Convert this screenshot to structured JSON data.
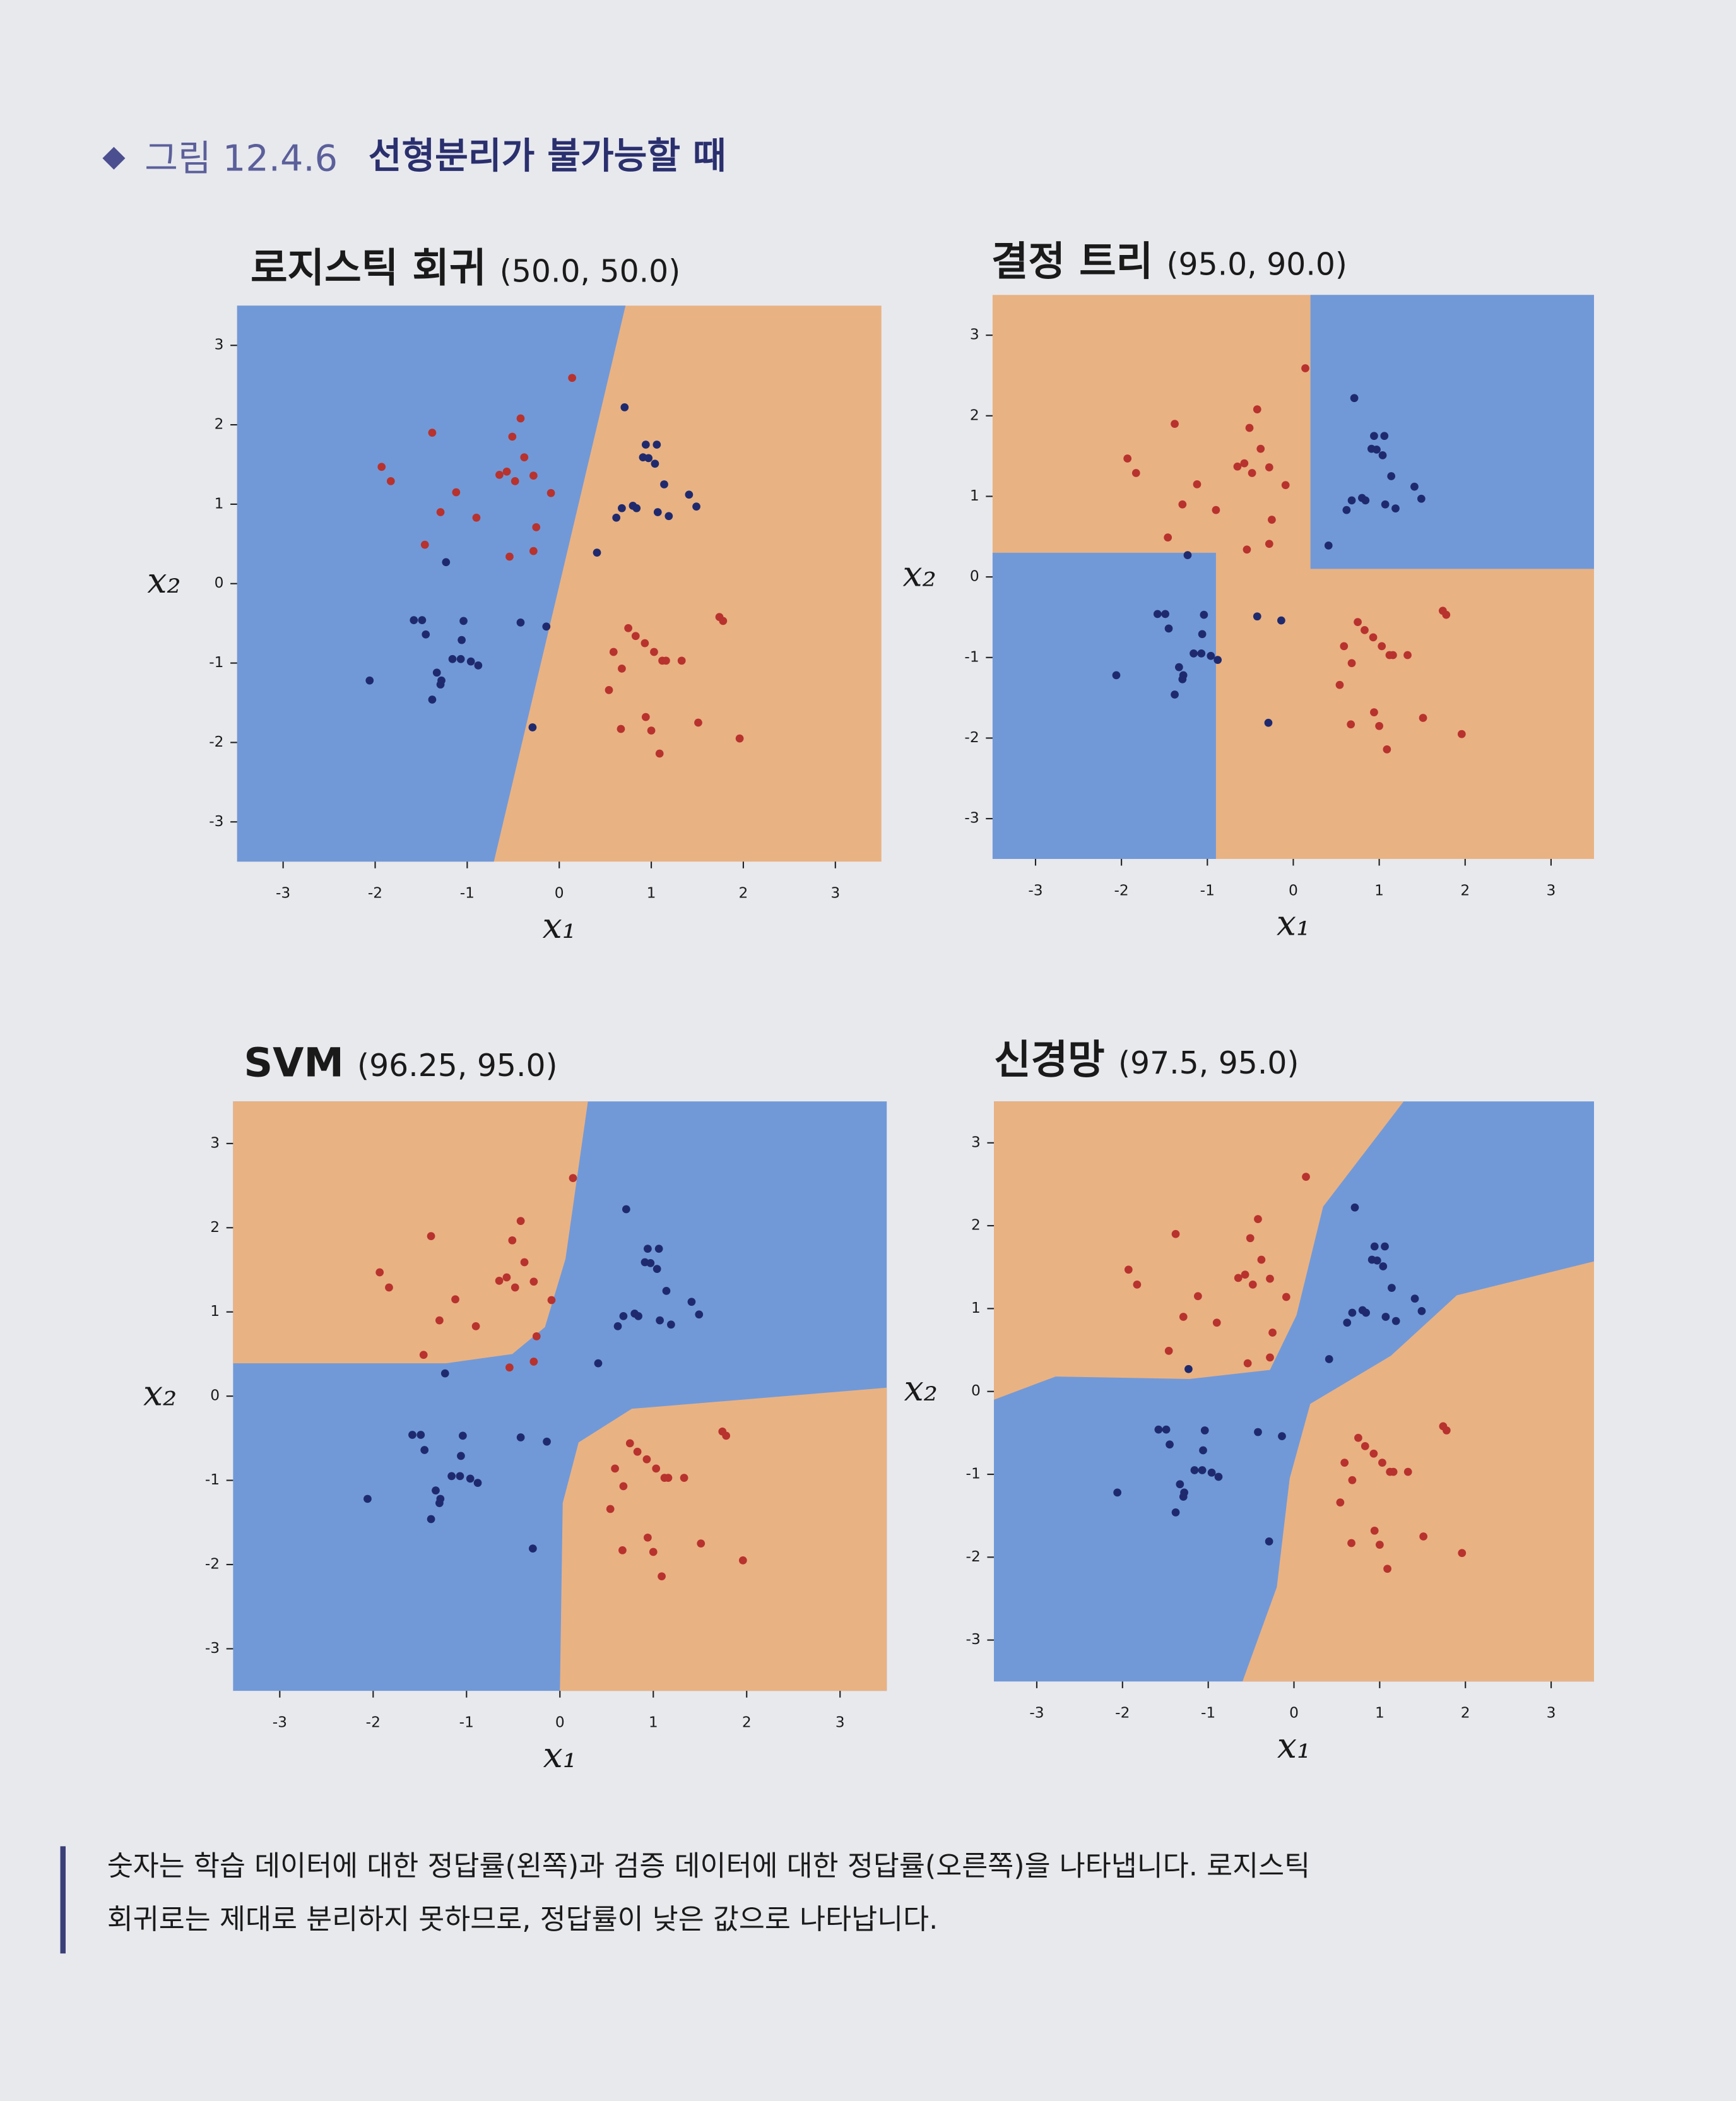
{
  "figure": {
    "label": "그림 12.4.6",
    "title": "선형분리가 불가능할 때"
  },
  "note": {
    "lines": [
      "숫자는 학습 데이터에 대한 정답률(왼쪽)과 검증 데이터에 대한 정답률(오른쪽)을 나타냅니다. 로지스틱",
      "회귀로는 제대로 분리하지 못하므로, 정답률이 낮은 값으로 나타납니다."
    ]
  },
  "chart_data": [
    {
      "type": "scatter",
      "title": "로지스틱 회귀",
      "subtitle": "(50.0, 50.0)",
      "xlabel": "x₁",
      "ylabel": "x₂",
      "xlim": [
        -3.5,
        3.5
      ],
      "ylim": [
        -3.5,
        3.5
      ],
      "xticks": [
        -3,
        -2,
        -1,
        0,
        1,
        2,
        3
      ],
      "yticks": [
        -3,
        -2,
        -1,
        0,
        1,
        2,
        3
      ],
      "background": "#e9b283",
      "regions": [
        {
          "color": "#7199d8",
          "x": [
            -3.5,
            0.72,
            -0.71,
            -3.5
          ],
          "y": [
            3.5,
            3.5,
            -3.5,
            -3.5
          ]
        }
      ],
      "series": [
        {
          "color": "#b8322e",
          "x": [
            -1.93,
            -1.83,
            -1.38,
            -1.12,
            -1.29,
            -1.46,
            -0.9,
            -0.57,
            -0.51,
            -0.42,
            -0.65,
            -0.48,
            -0.38,
            -0.28,
            -0.25,
            -0.54,
            -0.28,
            -0.09,
            0.14,
            0.75,
            0.83,
            0.59,
            0.68,
            0.93,
            1.03,
            1.12,
            1.16,
            1.33,
            0.54,
            0.94,
            1.0,
            0.67,
            1.09,
            1.51,
            1.74,
            1.78,
            1.96
          ],
          "y": [
            1.47,
            1.29,
            1.9,
            1.15,
            0.9,
            0.49,
            0.83,
            1.41,
            1.85,
            2.08,
            1.37,
            1.29,
            1.59,
            1.36,
            0.71,
            0.34,
            0.41,
            1.14,
            2.59,
            -0.56,
            -0.66,
            -0.86,
            -1.07,
            -0.75,
            -0.86,
            -0.97,
            -0.97,
            -0.97,
            -1.34,
            -1.68,
            -1.85,
            -1.83,
            -2.14,
            -1.75,
            -0.42,
            -0.47,
            -1.95
          ]
        },
        {
          "color": "#1f2a6e",
          "x": [
            0.71,
            0.94,
            1.06,
            0.91,
            1.04,
            0.97,
            1.14,
            0.84,
            0.68,
            0.62,
            0.8,
            1.07,
            1.19,
            1.41,
            1.49,
            0.41,
            -1.58,
            -1.49,
            -1.45,
            -1.04,
            -1.06,
            -1.16,
            -1.07,
            -0.96,
            -0.88,
            -1.33,
            -1.28,
            -1.38,
            -1.29,
            -1.23,
            -2.06,
            -0.42,
            -0.14,
            -0.29
          ],
          "y": [
            2.22,
            1.75,
            1.75,
            1.59,
            1.51,
            1.58,
            1.25,
            0.95,
            0.95,
            0.83,
            0.98,
            0.9,
            0.85,
            1.12,
            0.97,
            0.39,
            -0.46,
            -0.46,
            -0.64,
            -0.47,
            -0.71,
            -0.95,
            -0.95,
            -0.98,
            -1.03,
            -1.12,
            -1.22,
            -1.46,
            -1.27,
            0.27,
            -1.22,
            -0.49,
            -0.54,
            -1.81
          ]
        }
      ]
    },
    {
      "type": "scatter",
      "title": "결정 트리",
      "subtitle": "(95.0, 90.0)",
      "xlabel": "x₁",
      "ylabel": "x₂",
      "xlim": [
        -3.5,
        3.5
      ],
      "ylim": [
        -3.5,
        3.5
      ],
      "xticks": [
        -3,
        -2,
        -1,
        0,
        1,
        2,
        3
      ],
      "yticks": [
        -3,
        -2,
        -1,
        0,
        1,
        2,
        3
      ],
      "background": "#e9b283",
      "regions": [
        {
          "color": "#7199d8",
          "x": [
            0.2,
            3.5,
            3.5,
            0.2
          ],
          "y": [
            3.5,
            3.5,
            0.1,
            0.1
          ]
        },
        {
          "color": "#7199d8",
          "x": [
            -3.5,
            -0.9,
            -0.9,
            -3.5
          ],
          "y": [
            0.3,
            0.3,
            -3.5,
            -3.5
          ]
        }
      ],
      "series": [
        {
          "color": "#b8322e",
          "x": [
            -1.93,
            -1.83,
            -1.38,
            -1.12,
            -1.29,
            -1.46,
            -0.9,
            -0.57,
            -0.51,
            -0.42,
            -0.65,
            -0.48,
            -0.38,
            -0.28,
            -0.25,
            -0.54,
            -0.28,
            -0.09,
            0.14,
            0.75,
            0.83,
            0.59,
            0.68,
            0.93,
            1.03,
            1.12,
            1.16,
            1.33,
            0.54,
            0.94,
            1.0,
            0.67,
            1.09,
            1.51,
            1.74,
            1.78,
            1.96
          ],
          "y": [
            1.47,
            1.29,
            1.9,
            1.15,
            0.9,
            0.49,
            0.83,
            1.41,
            1.85,
            2.08,
            1.37,
            1.29,
            1.59,
            1.36,
            0.71,
            0.34,
            0.41,
            1.14,
            2.59,
            -0.56,
            -0.66,
            -0.86,
            -1.07,
            -0.75,
            -0.86,
            -0.97,
            -0.97,
            -0.97,
            -1.34,
            -1.68,
            -1.85,
            -1.83,
            -2.14,
            -1.75,
            -0.42,
            -0.47,
            -1.95
          ]
        },
        {
          "color": "#1f2a6e",
          "x": [
            0.71,
            0.94,
            1.06,
            0.91,
            1.04,
            0.97,
            1.14,
            0.84,
            0.68,
            0.62,
            0.8,
            1.07,
            1.19,
            1.41,
            1.49,
            0.41,
            -1.58,
            -1.49,
            -1.45,
            -1.04,
            -1.06,
            -1.16,
            -1.07,
            -0.96,
            -0.88,
            -1.33,
            -1.28,
            -1.38,
            -1.29,
            -1.23,
            -2.06,
            -0.42,
            -0.14,
            -0.29
          ],
          "y": [
            2.22,
            1.75,
            1.75,
            1.59,
            1.51,
            1.58,
            1.25,
            0.95,
            0.95,
            0.83,
            0.98,
            0.9,
            0.85,
            1.12,
            0.97,
            0.39,
            -0.46,
            -0.46,
            -0.64,
            -0.47,
            -0.71,
            -0.95,
            -0.95,
            -0.98,
            -1.03,
            -1.12,
            -1.22,
            -1.46,
            -1.27,
            0.27,
            -1.22,
            -0.49,
            -0.54,
            -1.81
          ]
        }
      ]
    },
    {
      "type": "scatter",
      "title": "SVM",
      "subtitle": "(96.25, 95.0)",
      "xlabel": "x₁",
      "ylabel": "x₂",
      "xlim": [
        -3.5,
        3.5
      ],
      "ylim": [
        -3.5,
        3.5
      ],
      "xticks": [
        -3,
        -2,
        -1,
        0,
        1,
        2,
        3
      ],
      "yticks": [
        -3,
        -2,
        -1,
        0,
        1,
        2,
        3
      ],
      "background": "#7199d8",
      "regions": [
        {
          "color": "#e9b283",
          "x": [
            -3.5,
            0.3,
            0.06,
            -0.16,
            -0.51,
            -1.22,
            -3.5
          ],
          "y": [
            3.5,
            3.5,
            1.63,
            0.82,
            0.5,
            0.39,
            0.39
          ]
        },
        {
          "color": "#e9b283",
          "x": [
            3.5,
            3.5,
            0.77,
            0.2,
            0.03,
            0.0
          ],
          "y": [
            -3.5,
            0.1,
            -0.15,
            -0.55,
            -1.27,
            -3.5
          ]
        }
      ],
      "series": [
        {
          "color": "#b8322e",
          "x": [
            -1.93,
            -1.83,
            -1.38,
            -1.12,
            -1.29,
            -1.46,
            -0.9,
            -0.57,
            -0.51,
            -0.42,
            -0.65,
            -0.48,
            -0.38,
            -0.28,
            -0.25,
            -0.54,
            -0.28,
            -0.09,
            0.14,
            0.75,
            0.83,
            0.59,
            0.68,
            0.93,
            1.03,
            1.12,
            1.16,
            1.33,
            0.54,
            0.94,
            1.0,
            0.67,
            1.09,
            1.51,
            1.74,
            1.78,
            1.96
          ],
          "y": [
            1.47,
            1.29,
            1.9,
            1.15,
            0.9,
            0.49,
            0.83,
            1.41,
            1.85,
            2.08,
            1.37,
            1.29,
            1.59,
            1.36,
            0.71,
            0.34,
            0.41,
            1.14,
            2.59,
            -0.56,
            -0.66,
            -0.86,
            -1.07,
            -0.75,
            -0.86,
            -0.97,
            -0.97,
            -0.97,
            -1.34,
            -1.68,
            -1.85,
            -1.83,
            -2.14,
            -1.75,
            -0.42,
            -0.47,
            -1.95
          ]
        },
        {
          "color": "#1f2a6e",
          "x": [
            0.71,
            0.94,
            1.06,
            0.91,
            1.04,
            0.97,
            1.14,
            0.84,
            0.68,
            0.62,
            0.8,
            1.07,
            1.19,
            1.41,
            1.49,
            0.41,
            -1.58,
            -1.49,
            -1.45,
            -1.04,
            -1.06,
            -1.16,
            -1.07,
            -0.96,
            -0.88,
            -1.33,
            -1.28,
            -1.38,
            -1.29,
            -1.23,
            -2.06,
            -0.42,
            -0.14,
            -0.29
          ],
          "y": [
            2.22,
            1.75,
            1.75,
            1.59,
            1.51,
            1.58,
            1.25,
            0.95,
            0.95,
            0.83,
            0.98,
            0.9,
            0.85,
            1.12,
            0.97,
            0.39,
            -0.46,
            -0.46,
            -0.64,
            -0.47,
            -0.71,
            -0.95,
            -0.95,
            -0.98,
            -1.03,
            -1.12,
            -1.22,
            -1.46,
            -1.27,
            0.27,
            -1.22,
            -0.49,
            -0.54,
            -1.81
          ]
        }
      ]
    },
    {
      "type": "scatter",
      "title": "신경망",
      "subtitle": "(97.5, 95.0)",
      "xlabel": "x₁",
      "ylabel": "x₂",
      "xlim": [
        -3.5,
        3.5
      ],
      "ylim": [
        -3.5,
        3.5
      ],
      "xticks": [
        -3,
        -2,
        -1,
        0,
        1,
        2,
        3
      ],
      "yticks": [
        -3,
        -2,
        -1,
        0,
        1,
        2,
        3
      ],
      "background": "#7199d8",
      "regions": [
        {
          "color": "#e9b283",
          "x": [
            -3.5,
            1.28,
            0.34,
            0.03,
            -0.28,
            -1.22,
            -2.78,
            -3.5
          ],
          "y": [
            3.5,
            3.5,
            2.23,
            0.92,
            0.26,
            0.15,
            0.18,
            -0.1
          ]
        },
        {
          "color": "#e9b283",
          "x": [
            3.5,
            3.5,
            1.9,
            1.13,
            0.19,
            -0.05,
            -0.2,
            -0.6
          ],
          "y": [
            -3.5,
            1.57,
            1.16,
            0.43,
            -0.15,
            -1.05,
            -2.36,
            -3.5
          ]
        }
      ],
      "series": [
        {
          "color": "#b8322e",
          "x": [
            -1.93,
            -1.83,
            -1.38,
            -1.12,
            -1.29,
            -1.46,
            -0.9,
            -0.57,
            -0.51,
            -0.42,
            -0.65,
            -0.48,
            -0.38,
            -0.28,
            -0.25,
            -0.54,
            -0.28,
            -0.09,
            0.14,
            0.75,
            0.83,
            0.59,
            0.68,
            0.93,
            1.03,
            1.12,
            1.16,
            1.33,
            0.54,
            0.94,
            1.0,
            0.67,
            1.09,
            1.51,
            1.74,
            1.78,
            1.96
          ],
          "y": [
            1.47,
            1.29,
            1.9,
            1.15,
            0.9,
            0.49,
            0.83,
            1.41,
            1.85,
            2.08,
            1.37,
            1.29,
            1.59,
            1.36,
            0.71,
            0.34,
            0.41,
            1.14,
            2.59,
            -0.56,
            -0.66,
            -0.86,
            -1.07,
            -0.75,
            -0.86,
            -0.97,
            -0.97,
            -0.97,
            -1.34,
            -1.68,
            -1.85,
            -1.83,
            -2.14,
            -1.75,
            -0.42,
            -0.47,
            -1.95
          ]
        },
        {
          "color": "#1f2a6e",
          "x": [
            0.71,
            0.94,
            1.06,
            0.91,
            1.04,
            0.97,
            1.14,
            0.84,
            0.68,
            0.62,
            0.8,
            1.07,
            1.19,
            1.41,
            1.49,
            0.41,
            -1.58,
            -1.49,
            -1.45,
            -1.04,
            -1.06,
            -1.16,
            -1.07,
            -0.96,
            -0.88,
            -1.33,
            -1.28,
            -1.38,
            -1.29,
            -1.23,
            -2.06,
            -0.42,
            -0.14,
            -0.29
          ],
          "y": [
            2.22,
            1.75,
            1.75,
            1.59,
            1.51,
            1.58,
            1.25,
            0.95,
            0.95,
            0.83,
            0.98,
            0.9,
            0.85,
            1.12,
            0.97,
            0.39,
            -0.46,
            -0.46,
            -0.64,
            -0.47,
            -0.71,
            -0.95,
            -0.95,
            -0.98,
            -1.03,
            -1.12,
            -1.22,
            -1.46,
            -1.27,
            0.27,
            -1.22,
            -0.49,
            -0.54,
            -1.81
          ]
        }
      ]
    }
  ]
}
